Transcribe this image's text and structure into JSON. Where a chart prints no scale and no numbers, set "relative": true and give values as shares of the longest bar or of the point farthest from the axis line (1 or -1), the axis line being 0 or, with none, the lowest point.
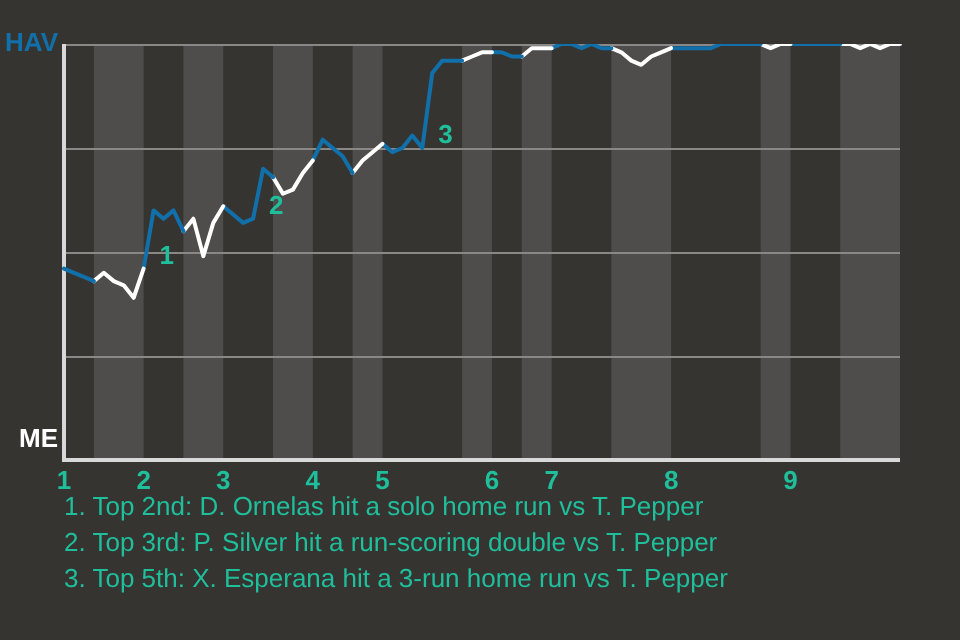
{
  "chart_data": {
    "type": "line",
    "relative": true,
    "categories": [
      "1",
      null,
      null,
      null,
      null,
      null,
      null,
      null,
      "2",
      null,
      null,
      null,
      null,
      null,
      null,
      null,
      "3",
      null,
      null,
      null,
      null,
      null,
      null,
      null,
      null,
      "4",
      null,
      null,
      null,
      null,
      null,
      null,
      "5",
      null,
      null,
      null,
      null,
      null,
      null,
      null,
      null,
      null,
      null,
      "6",
      null,
      null,
      null,
      null,
      null,
      "7",
      null,
      null,
      null,
      null,
      null,
      null,
      null,
      null,
      null,
      null,
      null,
      "8",
      null,
      null,
      null,
      null,
      null,
      null,
      null,
      null,
      null,
      null,
      null,
      "9",
      null,
      null,
      null,
      null,
      null,
      null,
      null,
      null,
      null,
      null,
      null
    ],
    "series": [
      {
        "color": "#1170aa",
        "values": [
          0.46,
          0.45,
          0.44,
          0.43,
          null,
          null,
          null,
          null,
          null,
          null,
          null,
          null,
          null,
          null,
          null,
          null,
          null,
          null,
          null,
          null,
          null,
          null,
          null,
          null,
          null,
          null,
          null,
          null,
          null,
          null,
          null,
          null,
          null,
          null,
          null,
          null,
          null,
          null,
          null,
          null,
          null,
          null,
          null,
          null,
          null,
          null,
          null,
          null,
          null,
          null,
          null,
          null,
          null,
          null,
          null,
          null,
          null,
          null,
          null,
          null,
          null,
          null,
          null,
          null,
          null,
          null,
          null,
          null,
          null,
          null,
          null,
          null,
          null,
          null,
          null,
          null,
          null,
          null,
          null,
          null,
          null,
          null,
          null,
          null,
          null
        ]
      },
      {
        "color": "#ffffff",
        "values": [
          null,
          null,
          null,
          0.43,
          0.45,
          0.43,
          0.42,
          0.39,
          0.46,
          null,
          null,
          null,
          null,
          null,
          null,
          null,
          null,
          null,
          null,
          null,
          null,
          null,
          null,
          null,
          null,
          null,
          null,
          null,
          null,
          null,
          null,
          null,
          null,
          null,
          null,
          null,
          null,
          null,
          null,
          null,
          null,
          null,
          null,
          null,
          null,
          null,
          null,
          null,
          null,
          null,
          null,
          null,
          null,
          null,
          null,
          null,
          null,
          null,
          null,
          null,
          null,
          null,
          null,
          null,
          null,
          null,
          null,
          null,
          null,
          null,
          null,
          null,
          null,
          null,
          null,
          null,
          null,
          null,
          null,
          null,
          null,
          null,
          null,
          null,
          null
        ]
      },
      {
        "color": "#1170aa",
        "values": [
          null,
          null,
          null,
          null,
          null,
          null,
          null,
          null,
          0.46,
          0.6,
          0.58,
          0.6,
          0.55,
          null,
          null,
          null,
          null,
          null,
          null,
          null,
          null,
          null,
          null,
          null,
          null,
          null,
          null,
          null,
          null,
          null,
          null,
          null,
          null,
          null,
          null,
          null,
          null,
          null,
          null,
          null,
          null,
          null,
          null,
          null,
          null,
          null,
          null,
          null,
          null,
          null,
          null,
          null,
          null,
          null,
          null,
          null,
          null,
          null,
          null,
          null,
          null,
          null,
          null,
          null,
          null,
          null,
          null,
          null,
          null,
          null,
          null,
          null,
          null,
          null,
          null,
          null,
          null,
          null,
          null,
          null,
          null,
          null,
          null,
          null,
          null
        ]
      },
      {
        "color": "#ffffff",
        "values": [
          null,
          null,
          null,
          null,
          null,
          null,
          null,
          null,
          null,
          null,
          null,
          null,
          0.55,
          0.58,
          0.49,
          0.57,
          0.61,
          null,
          null,
          null,
          null,
          null,
          null,
          null,
          null,
          null,
          null,
          null,
          null,
          null,
          null,
          null,
          null,
          null,
          null,
          null,
          null,
          null,
          null,
          null,
          null,
          null,
          null,
          null,
          null,
          null,
          null,
          null,
          null,
          null,
          null,
          null,
          null,
          null,
          null,
          null,
          null,
          null,
          null,
          null,
          null,
          null,
          null,
          null,
          null,
          null,
          null,
          null,
          null,
          null,
          null,
          null,
          null,
          null,
          null,
          null,
          null,
          null,
          null,
          null,
          null,
          null,
          null,
          null,
          null
        ]
      },
      {
        "color": "#1170aa",
        "values": [
          null,
          null,
          null,
          null,
          null,
          null,
          null,
          null,
          null,
          null,
          null,
          null,
          null,
          null,
          null,
          null,
          0.61,
          0.59,
          0.57,
          0.58,
          0.7,
          0.68,
          null,
          null,
          null,
          null,
          null,
          null,
          null,
          null,
          null,
          null,
          null,
          null,
          null,
          null,
          null,
          null,
          null,
          null,
          null,
          null,
          null,
          null,
          null,
          null,
          null,
          null,
          null,
          null,
          null,
          null,
          null,
          null,
          null,
          null,
          null,
          null,
          null,
          null,
          null,
          null,
          null,
          null,
          null,
          null,
          null,
          null,
          null,
          null,
          null,
          null,
          null,
          null,
          null,
          null,
          null,
          null,
          null,
          null,
          null,
          null,
          null,
          null,
          null
        ]
      },
      {
        "color": "#ffffff",
        "values": [
          null,
          null,
          null,
          null,
          null,
          null,
          null,
          null,
          null,
          null,
          null,
          null,
          null,
          null,
          null,
          null,
          null,
          null,
          null,
          null,
          null,
          0.68,
          0.64,
          0.65,
          0.69,
          0.72,
          null,
          null,
          null,
          null,
          null,
          null,
          null,
          null,
          null,
          null,
          null,
          null,
          null,
          null,
          null,
          null,
          null,
          null,
          null,
          null,
          null,
          null,
          null,
          null,
          null,
          null,
          null,
          null,
          null,
          null,
          null,
          null,
          null,
          null,
          null,
          null,
          null,
          null,
          null,
          null,
          null,
          null,
          null,
          null,
          null,
          null,
          null,
          null,
          null,
          null,
          null,
          null,
          null,
          null,
          null,
          null,
          null,
          null,
          null
        ]
      },
      {
        "color": "#1170aa",
        "values": [
          null,
          null,
          null,
          null,
          null,
          null,
          null,
          null,
          null,
          null,
          null,
          null,
          null,
          null,
          null,
          null,
          null,
          null,
          null,
          null,
          null,
          null,
          null,
          null,
          null,
          0.72,
          0.77,
          0.75,
          0.73,
          0.69,
          null,
          null,
          null,
          null,
          null,
          null,
          null,
          null,
          null,
          null,
          null,
          null,
          null,
          null,
          null,
          null,
          null,
          null,
          null,
          null,
          null,
          null,
          null,
          null,
          null,
          null,
          null,
          null,
          null,
          null,
          null,
          null,
          null,
          null,
          null,
          null,
          null,
          null,
          null,
          null,
          null,
          null,
          null,
          null,
          null,
          null,
          null,
          null,
          null,
          null,
          null,
          null,
          null,
          null,
          null
        ]
      },
      {
        "color": "#ffffff",
        "values": [
          null,
          null,
          null,
          null,
          null,
          null,
          null,
          null,
          null,
          null,
          null,
          null,
          null,
          null,
          null,
          null,
          null,
          null,
          null,
          null,
          null,
          null,
          null,
          null,
          null,
          null,
          null,
          null,
          null,
          0.69,
          0.72,
          0.74,
          0.76,
          null,
          null,
          null,
          null,
          null,
          null,
          null,
          null,
          null,
          null,
          null,
          null,
          null,
          null,
          null,
          null,
          null,
          null,
          null,
          null,
          null,
          null,
          null,
          null,
          null,
          null,
          null,
          null,
          null,
          null,
          null,
          null,
          null,
          null,
          null,
          null,
          null,
          null,
          null,
          null,
          null,
          null,
          null,
          null,
          null,
          null,
          null,
          null,
          null,
          null,
          null,
          null
        ]
      },
      {
        "color": "#1170aa",
        "values": [
          null,
          null,
          null,
          null,
          null,
          null,
          null,
          null,
          null,
          null,
          null,
          null,
          null,
          null,
          null,
          null,
          null,
          null,
          null,
          null,
          null,
          null,
          null,
          null,
          null,
          null,
          null,
          null,
          null,
          null,
          null,
          null,
          0.76,
          0.74,
          0.75,
          0.78,
          0.75,
          0.93,
          0.96,
          0.96,
          0.96,
          null,
          null,
          null,
          null,
          null,
          null,
          null,
          null,
          null,
          null,
          null,
          null,
          null,
          null,
          null,
          null,
          null,
          null,
          null,
          null,
          null,
          null,
          null,
          null,
          null,
          null,
          null,
          null,
          null,
          null,
          null,
          null,
          null,
          null,
          null,
          null,
          null,
          null,
          null,
          null,
          null,
          null,
          null,
          null
        ]
      },
      {
        "color": "#ffffff",
        "values": [
          null,
          null,
          null,
          null,
          null,
          null,
          null,
          null,
          null,
          null,
          null,
          null,
          null,
          null,
          null,
          null,
          null,
          null,
          null,
          null,
          null,
          null,
          null,
          null,
          null,
          null,
          null,
          null,
          null,
          null,
          null,
          null,
          null,
          null,
          null,
          null,
          null,
          null,
          null,
          null,
          0.96,
          0.97,
          0.98,
          0.98,
          null,
          null,
          null,
          null,
          null,
          null,
          null,
          null,
          null,
          null,
          null,
          null,
          null,
          null,
          null,
          null,
          null,
          null,
          null,
          null,
          null,
          null,
          null,
          null,
          null,
          null,
          null,
          null,
          null,
          null,
          null,
          null,
          null,
          null,
          null,
          null,
          null,
          null,
          null,
          null,
          null
        ]
      },
      {
        "color": "#1170aa",
        "values": [
          null,
          null,
          null,
          null,
          null,
          null,
          null,
          null,
          null,
          null,
          null,
          null,
          null,
          null,
          null,
          null,
          null,
          null,
          null,
          null,
          null,
          null,
          null,
          null,
          null,
          null,
          null,
          null,
          null,
          null,
          null,
          null,
          null,
          null,
          null,
          null,
          null,
          null,
          null,
          null,
          null,
          null,
          null,
          0.98,
          0.98,
          0.97,
          0.97,
          null,
          null,
          null,
          null,
          null,
          null,
          null,
          null,
          null,
          null,
          null,
          null,
          null,
          null,
          null,
          null,
          null,
          null,
          null,
          null,
          null,
          null,
          null,
          null,
          null,
          null,
          null,
          null,
          null,
          null,
          null,
          null,
          null,
          null,
          null,
          null,
          null,
          null
        ]
      },
      {
        "color": "#ffffff",
        "values": [
          null,
          null,
          null,
          null,
          null,
          null,
          null,
          null,
          null,
          null,
          null,
          null,
          null,
          null,
          null,
          null,
          null,
          null,
          null,
          null,
          null,
          null,
          null,
          null,
          null,
          null,
          null,
          null,
          null,
          null,
          null,
          null,
          null,
          null,
          null,
          null,
          null,
          null,
          null,
          null,
          null,
          null,
          null,
          null,
          null,
          null,
          0.97,
          0.99,
          0.99,
          0.99,
          null,
          null,
          null,
          null,
          null,
          null,
          null,
          null,
          null,
          null,
          null,
          null,
          null,
          null,
          null,
          null,
          null,
          null,
          null,
          null,
          null,
          null,
          null,
          null,
          null,
          null,
          null,
          null,
          null,
          null,
          null,
          null,
          null,
          null,
          null
        ]
      },
      {
        "color": "#1170aa",
        "values": [
          null,
          null,
          null,
          null,
          null,
          null,
          null,
          null,
          null,
          null,
          null,
          null,
          null,
          null,
          null,
          null,
          null,
          null,
          null,
          null,
          null,
          null,
          null,
          null,
          null,
          null,
          null,
          null,
          null,
          null,
          null,
          null,
          null,
          null,
          null,
          null,
          null,
          null,
          null,
          null,
          null,
          null,
          null,
          null,
          null,
          null,
          null,
          null,
          null,
          0.99,
          1,
          1,
          0.99,
          1,
          0.99,
          0.99,
          null,
          null,
          null,
          null,
          null,
          null,
          null,
          null,
          null,
          null,
          null,
          null,
          null,
          null,
          null,
          null,
          null,
          null,
          null,
          null,
          null,
          null,
          null,
          null,
          null,
          null,
          null,
          null,
          null
        ]
      },
      {
        "color": "#ffffff",
        "values": [
          null,
          null,
          null,
          null,
          null,
          null,
          null,
          null,
          null,
          null,
          null,
          null,
          null,
          null,
          null,
          null,
          null,
          null,
          null,
          null,
          null,
          null,
          null,
          null,
          null,
          null,
          null,
          null,
          null,
          null,
          null,
          null,
          null,
          null,
          null,
          null,
          null,
          null,
          null,
          null,
          null,
          null,
          null,
          null,
          null,
          null,
          null,
          null,
          null,
          null,
          null,
          null,
          null,
          null,
          null,
          0.99,
          0.98,
          0.96,
          0.95,
          0.97,
          0.98,
          0.99,
          null,
          null,
          null,
          null,
          null,
          null,
          null,
          null,
          null,
          null,
          null,
          null,
          null,
          null,
          null,
          null,
          null,
          null,
          null,
          null,
          null,
          null,
          null
        ]
      },
      {
        "color": "#1170aa",
        "values": [
          null,
          null,
          null,
          null,
          null,
          null,
          null,
          null,
          null,
          null,
          null,
          null,
          null,
          null,
          null,
          null,
          null,
          null,
          null,
          null,
          null,
          null,
          null,
          null,
          null,
          null,
          null,
          null,
          null,
          null,
          null,
          null,
          null,
          null,
          null,
          null,
          null,
          null,
          null,
          null,
          null,
          null,
          null,
          null,
          null,
          null,
          null,
          null,
          null,
          null,
          null,
          null,
          null,
          null,
          null,
          null,
          null,
          null,
          null,
          null,
          null,
          0.99,
          0.99,
          0.99,
          0.99,
          0.99,
          1,
          1,
          1,
          1,
          1,
          null,
          null,
          null,
          null,
          null,
          null,
          null,
          null,
          null,
          null,
          null,
          null,
          null,
          null
        ]
      },
      {
        "color": "#ffffff",
        "values": [
          null,
          null,
          null,
          null,
          null,
          null,
          null,
          null,
          null,
          null,
          null,
          null,
          null,
          null,
          null,
          null,
          null,
          null,
          null,
          null,
          null,
          null,
          null,
          null,
          null,
          null,
          null,
          null,
          null,
          null,
          null,
          null,
          null,
          null,
          null,
          null,
          null,
          null,
          null,
          null,
          null,
          null,
          null,
          null,
          null,
          null,
          null,
          null,
          null,
          null,
          null,
          null,
          null,
          null,
          null,
          null,
          null,
          null,
          null,
          null,
          null,
          null,
          null,
          null,
          null,
          null,
          null,
          null,
          null,
          null,
          1,
          0.99,
          1,
          1,
          null,
          null,
          null,
          null,
          null,
          null,
          null,
          null,
          null,
          null,
          null
        ]
      },
      {
        "color": "#1170aa",
        "values": [
          null,
          null,
          null,
          null,
          null,
          null,
          null,
          null,
          null,
          null,
          null,
          null,
          null,
          null,
          null,
          null,
          null,
          null,
          null,
          null,
          null,
          null,
          null,
          null,
          null,
          null,
          null,
          null,
          null,
          null,
          null,
          null,
          null,
          null,
          null,
          null,
          null,
          null,
          null,
          null,
          null,
          null,
          null,
          null,
          null,
          null,
          null,
          null,
          null,
          null,
          null,
          null,
          null,
          null,
          null,
          null,
          null,
          null,
          null,
          null,
          null,
          null,
          null,
          null,
          null,
          null,
          null,
          null,
          null,
          null,
          null,
          null,
          null,
          1,
          1,
          1,
          1,
          1,
          1,
          null,
          null,
          null,
          null,
          null,
          null
        ]
      },
      {
        "color": "#ffffff",
        "values": [
          null,
          null,
          null,
          null,
          null,
          null,
          null,
          null,
          null,
          null,
          null,
          null,
          null,
          null,
          null,
          null,
          null,
          null,
          null,
          null,
          null,
          null,
          null,
          null,
          null,
          null,
          null,
          null,
          null,
          null,
          null,
          null,
          null,
          null,
          null,
          null,
          null,
          null,
          null,
          null,
          null,
          null,
          null,
          null,
          null,
          null,
          null,
          null,
          null,
          null,
          null,
          null,
          null,
          null,
          null,
          null,
          null,
          null,
          null,
          null,
          null,
          null,
          null,
          null,
          null,
          null,
          null,
          null,
          null,
          null,
          null,
          null,
          null,
          null,
          null,
          null,
          null,
          null,
          1,
          1,
          0.99,
          1,
          0.99,
          1,
          1
        ]
      }
    ],
    "grid": "y",
    "annotations": [
      "HAV",
      "ME",
      "1",
      "2",
      "3",
      "1. Top 2nd: D. Ornelas hit a solo home run vs T. Pepper",
      "2. Top 3rd: P. Silver hit a run-scoring double vs T. Pepper",
      "3. Top 5th: X. Esperana hit a 3-run home run vs T. Pepper"
    ]
  }
}
